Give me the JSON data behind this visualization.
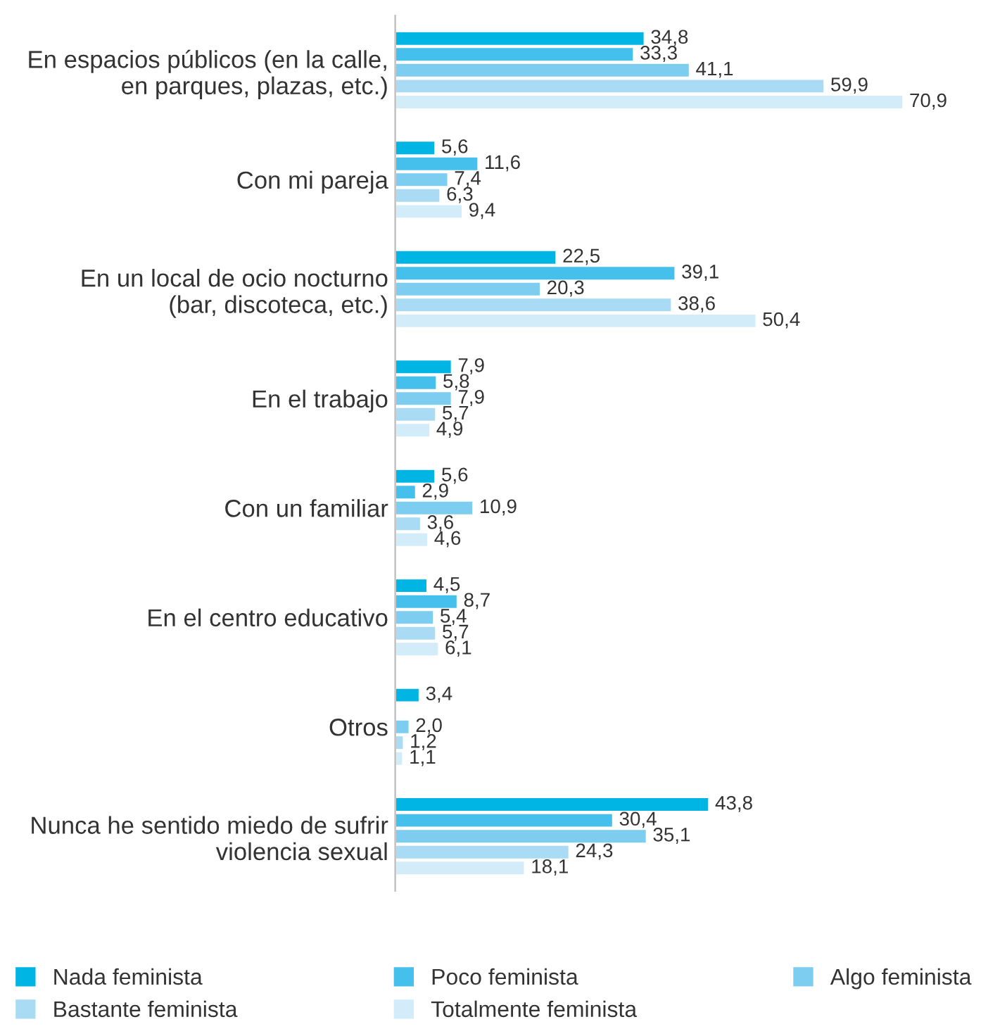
{
  "chart_data": {
    "type": "bar",
    "orientation": "horizontal",
    "categories": [
      "En espacios públicos (en la calle, en parques, plazas, etc.)",
      "Con mi pareja",
      "En un local de ocio nocturno (bar, discoteca, etc.)",
      "En el trabajo",
      "Con un familiar",
      "En el centro educativo",
      "Otros",
      "Nunca he sentido miedo de sufrir violencia sexual"
    ],
    "series": [
      {
        "name": "Nada feminista",
        "color": "#00b4e4",
        "values": [
          34.8,
          5.6,
          22.5,
          7.9,
          5.6,
          4.5,
          3.4,
          43.8
        ],
        "value_labels": [
          "34,8",
          "5,6",
          "22,5",
          "7,9",
          "5,6",
          "4,5",
          "3,4",
          "43,8"
        ]
      },
      {
        "name": "Poco feminista",
        "color": "#45bfec",
        "values": [
          33.3,
          11.6,
          39.1,
          5.8,
          2.9,
          8.7,
          null,
          30.4
        ],
        "value_labels": [
          "33,3",
          "11,6",
          "39,1",
          "5,8",
          "2,9",
          "8,7",
          null,
          "30,4"
        ]
      },
      {
        "name": "Algo feminista",
        "color": "#7ccdf0",
        "values": [
          41.1,
          7.4,
          20.3,
          7.9,
          10.9,
          5.4,
          2.0,
          35.1
        ],
        "value_labels": [
          "41,1",
          "7,4",
          "20,3",
          "7,9",
          "10,9",
          "5,4",
          "2,0",
          "35,1"
        ]
      },
      {
        "name": "Bastante feminista",
        "color": "#a9dbf4",
        "values": [
          59.9,
          6.3,
          38.6,
          5.7,
          3.6,
          5.7,
          1.2,
          24.3
        ],
        "value_labels": [
          "59,9",
          "6,3",
          "38,6",
          "5,7",
          "3,6",
          "5,7",
          "1,2",
          "24,3"
        ]
      },
      {
        "name": "Totalmente feminista",
        "color": "#d3ecfa",
        "values": [
          70.9,
          9.4,
          50.4,
          4.9,
          4.6,
          6.1,
          1.1,
          18.1
        ],
        "value_labels": [
          "70,9",
          "9,4",
          "50,4",
          "4,9",
          "4,6",
          "6,1",
          "1,1",
          "18,1"
        ]
      }
    ],
    "tick_labels": "y",
    "legend": "bottom",
    "grid": false
  }
}
